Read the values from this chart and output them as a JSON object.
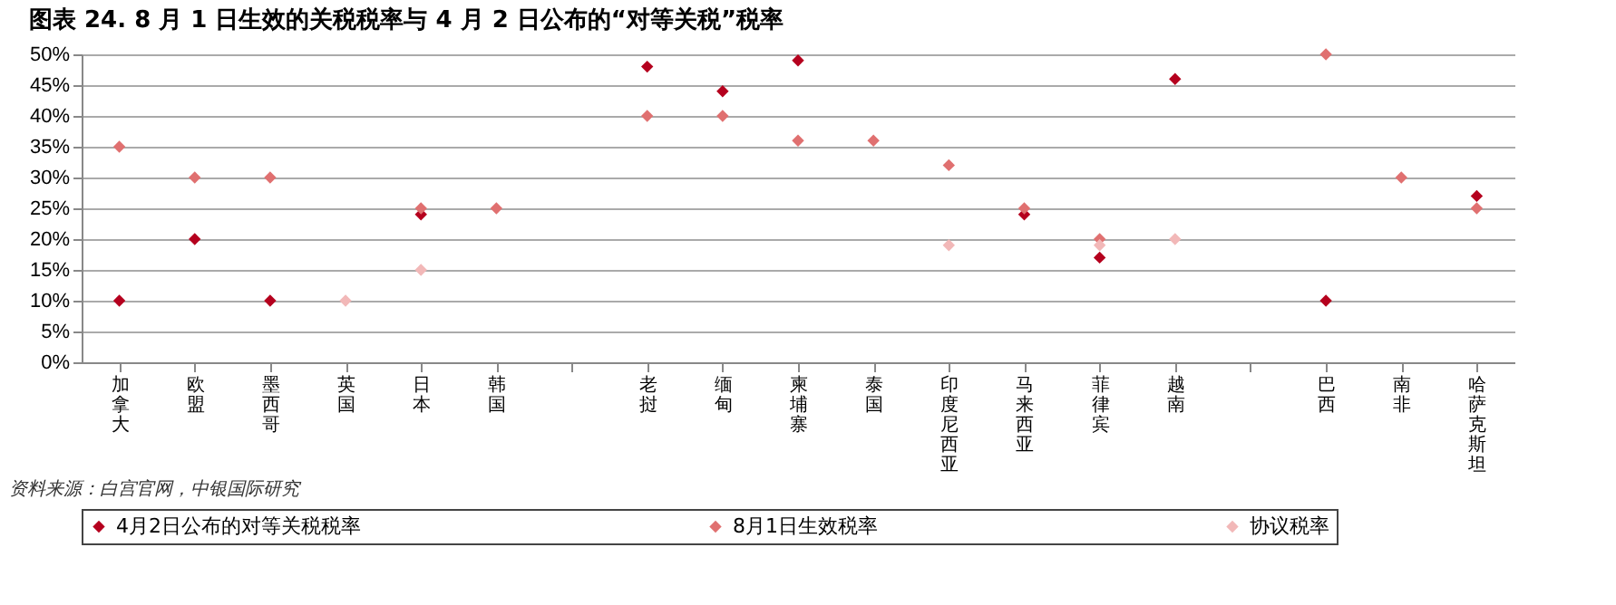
{
  "chart_data": {
    "type": "scatter",
    "title": "图表 24. 8 月 1 日生效的关税税率与 4 月 2 日公布的“对等关税”税率",
    "categories": [
      "加拿大",
      "欧盟",
      "墨西哥",
      "英国",
      "日本",
      "韩国",
      null,
      "老挝",
      "缅甸",
      "柬埔寨",
      "泰国",
      "印度尼西亚",
      "马来西亚",
      "菲律宾",
      "越南",
      null,
      "巴西",
      "南非",
      "哈萨克斯坦"
    ],
    "series": [
      {
        "name": "4月2日公布的对等关税税率",
        "color": "#b5001e",
        "values": [
          10,
          20,
          10,
          null,
          24,
          null,
          null,
          48,
          44,
          49,
          null,
          null,
          24,
          17,
          46,
          null,
          10,
          null,
          27
        ]
      },
      {
        "name": "8月1日生效税率",
        "color": "#e07070",
        "values": [
          35,
          30,
          30,
          null,
          25,
          25,
          null,
          40,
          40,
          36,
          36,
          32,
          25,
          20,
          null,
          null,
          50,
          30,
          25
        ]
      },
      {
        "name": "协议税率",
        "color": "#f2b8b8",
        "values": [
          null,
          null,
          null,
          10,
          15,
          null,
          null,
          null,
          null,
          null,
          null,
          19,
          null,
          19,
          20,
          null,
          null,
          null,
          null
        ]
      }
    ],
    "ylim": [
      0,
      50
    ],
    "yticks": [
      {
        "value": 0,
        "label": "0%"
      },
      {
        "value": 5,
        "label": "5%"
      },
      {
        "value": 10,
        "label": "10%"
      },
      {
        "value": 15,
        "label": "15%"
      },
      {
        "value": 20,
        "label": "20%"
      },
      {
        "value": 25,
        "label": "25%"
      },
      {
        "value": 30,
        "label": "30%"
      },
      {
        "value": 35,
        "label": "35%"
      },
      {
        "value": 40,
        "label": "40%"
      },
      {
        "value": 45,
        "label": "45%"
      },
      {
        "value": 50,
        "label": "50%"
      }
    ],
    "grid": "y",
    "legend": "bottom",
    "marker": "diamond",
    "annotations": [
      "资料来源：白宫官网，中银国际研究"
    ]
  }
}
